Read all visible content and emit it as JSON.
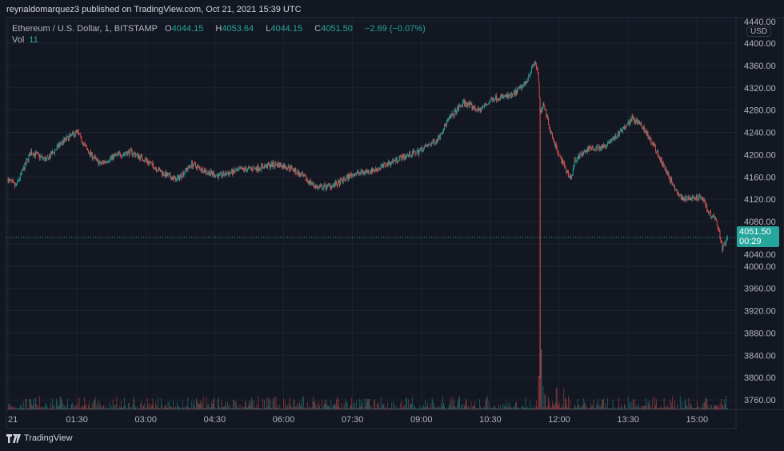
{
  "header": {
    "published": "reynaldomarquez3 published on TradingView.com, Oct 21, 2021 15:39 UTC"
  },
  "legend": {
    "symbol": "Ethereum / U.S. Dollar, 1, BITSTAMP",
    "o_label": "O",
    "o": "4044.15",
    "h_label": "H",
    "h": "4053.64",
    "l_label": "L",
    "l": "4044.15",
    "c_label": "C",
    "c": "4051.50",
    "change": "−2.69 (−0.07%)",
    "vol_label": "Vol",
    "vol": "11"
  },
  "price_axis": {
    "currency": "USD",
    "last_price": "4051.50",
    "countdown": "00:29"
  },
  "footer": {
    "brand": "TradingView"
  },
  "colors": {
    "background": "#131722",
    "up": "#26a69a",
    "down": "#ef5350",
    "grid": "#1f2330"
  },
  "chart_data": {
    "type": "candlestick",
    "title": "Ethereum / U.S. Dollar, 1, BITSTAMP",
    "interval": "1 minute",
    "ylim": [
      3740,
      4440
    ],
    "y_ticks": [
      "4440.00",
      "4400.00",
      "4360.00",
      "4320.00",
      "4280.00",
      "4240.00",
      "4200.00",
      "4160.00",
      "4120.00",
      "4080.00",
      "4040.00",
      "4000.00",
      "3960.00",
      "3920.00",
      "3880.00",
      "3840.00",
      "3800.00",
      "3760.00"
    ],
    "x_ticks": [
      "21",
      "01:30",
      "03:00",
      "04:30",
      "06:00",
      "07:30",
      "09:00",
      "10:30",
      "12:00",
      "13:30",
      "15:00"
    ],
    "x_tick_times": [
      "00:00",
      "01:30",
      "03:00",
      "04:30",
      "06:00",
      "07:30",
      "09:00",
      "10:30",
      "12:00",
      "13:30",
      "15:00"
    ],
    "grid": true,
    "last_price": 4051.5,
    "spike_low": {
      "time": "11:35",
      "price": 3800
    },
    "approx_close_path": [
      [
        "00:00",
        4155
      ],
      [
        "00:10",
        4143
      ],
      [
        "00:30",
        4205
      ],
      [
        "00:50",
        4190
      ],
      [
        "01:10",
        4222
      ],
      [
        "01:30",
        4241
      ],
      [
        "01:45",
        4205
      ],
      [
        "02:00",
        4183
      ],
      [
        "02:20",
        4198
      ],
      [
        "02:40",
        4205
      ],
      [
        "03:00",
        4190
      ],
      [
        "03:24",
        4165
      ],
      [
        "03:40",
        4155
      ],
      [
        "04:00",
        4183
      ],
      [
        "04:20",
        4169
      ],
      [
        "04:35",
        4162
      ],
      [
        "05:05",
        4173
      ],
      [
        "05:25",
        4176
      ],
      [
        "05:50",
        4183
      ],
      [
        "06:10",
        4176
      ],
      [
        "06:30",
        4155
      ],
      [
        "06:45",
        4140
      ],
      [
        "07:10",
        4147
      ],
      [
        "07:30",
        4165
      ],
      [
        "08:00",
        4173
      ],
      [
        "08:30",
        4193
      ],
      [
        "08:55",
        4205
      ],
      [
        "09:20",
        4226
      ],
      [
        "09:35",
        4262
      ],
      [
        "09:55",
        4294
      ],
      [
        "10:15",
        4279
      ],
      [
        "10:35",
        4302
      ],
      [
        "10:58",
        4305
      ],
      [
        "11:15",
        4327
      ],
      [
        "11:28",
        4366
      ],
      [
        "11:32",
        4348
      ],
      [
        "11:35",
        4277
      ],
      [
        "11:40",
        4291
      ],
      [
        "11:50",
        4234
      ],
      [
        "12:00",
        4198
      ],
      [
        "12:15",
        4155
      ],
      [
        "12:20",
        4190
      ],
      [
        "12:40",
        4212
      ],
      [
        "12:55",
        4212
      ],
      [
        "13:15",
        4234
      ],
      [
        "13:35",
        4265
      ],
      [
        "13:50",
        4248
      ],
      [
        "14:05",
        4212
      ],
      [
        "14:20",
        4169
      ],
      [
        "14:35",
        4126
      ],
      [
        "14:50",
        4119
      ],
      [
        "15:05",
        4126
      ],
      [
        "15:15",
        4097
      ],
      [
        "15:25",
        4083
      ],
      [
        "15:33",
        4033
      ],
      [
        "15:40",
        4051.5
      ]
    ]
  }
}
